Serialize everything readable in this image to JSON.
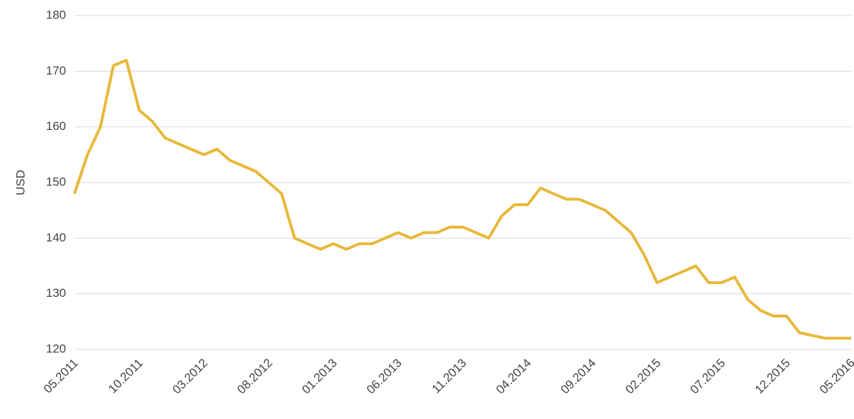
{
  "chart_data": {
    "type": "line",
    "y_label": "USD",
    "categories": [
      "05.2011",
      null,
      null,
      null,
      null,
      "10.2011",
      null,
      null,
      null,
      null,
      "03.2012",
      null,
      null,
      null,
      null,
      "08.2012",
      null,
      null,
      null,
      null,
      "01.2013",
      null,
      null,
      null,
      null,
      "06.2013",
      null,
      null,
      null,
      null,
      "11.2013",
      null,
      null,
      null,
      null,
      "04.2014",
      null,
      null,
      null,
      null,
      "09.2014",
      null,
      null,
      null,
      null,
      "02.2015",
      null,
      null,
      null,
      null,
      "07.2015",
      null,
      null,
      null,
      null,
      "12.2015",
      null,
      null,
      null,
      null,
      "05.2016"
    ],
    "series": [
      {
        "name": null,
        "color": "#e8b83a",
        "values": [
          148,
          155,
          160,
          171,
          172,
          163,
          161,
          158,
          157,
          156,
          155,
          156,
          154,
          153,
          152,
          150,
          148,
          140,
          139,
          138,
          139,
          138,
          139,
          139,
          140,
          141,
          140,
          141,
          141,
          142,
          142,
          141,
          140,
          144,
          146,
          146,
          149,
          148,
          147,
          147,
          146,
          145,
          143,
          141,
          137,
          132,
          133,
          134,
          135,
          132,
          132,
          133,
          129,
          127,
          126,
          126,
          123,
          122.5,
          122,
          122,
          122
        ]
      }
    ],
    "ylim": [
      120,
      180
    ],
    "yticks": [
      120,
      130,
      140,
      150,
      160,
      170,
      180
    ],
    "grid": true
  }
}
